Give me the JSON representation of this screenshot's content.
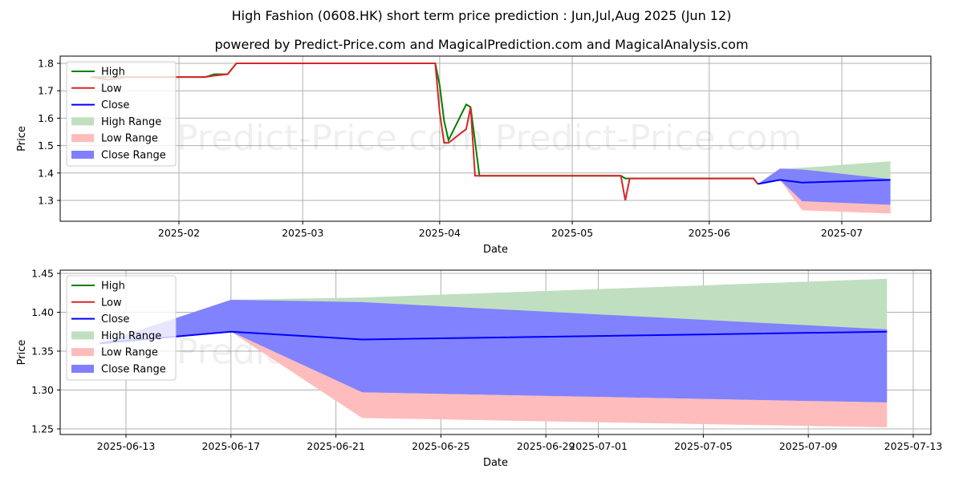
{
  "title": "High Fashion (0608.HK) short term price prediction : Jun,Jul,Aug 2025 (Jun 12)",
  "subtitle": "powered by Predict-Price.com and MagicalPrediction.com and MagicalAnalysis.com",
  "watermark": "Predict-Price.com",
  "colors": {
    "high": "#008000",
    "low": "#d62728",
    "close": "#0000ff",
    "high_range": "#c0dfc0",
    "low_range": "#ffbcbc",
    "close_range": "#7f7fff"
  },
  "legend": [
    "High",
    "Low",
    "Close",
    "High Range",
    "Low Range",
    "Close Range"
  ],
  "chart_data": [
    {
      "type": "line",
      "title": "High Fashion (0608.HK) short term price prediction : Jun,Jul,Aug 2025 (Jun 12)",
      "xlabel": "Date",
      "ylabel": "Price",
      "ylim": [
        1.22,
        1.83
      ],
      "yticks": [
        "1.3",
        "1.4",
        "1.5",
        "1.6",
        "1.7",
        "1.8"
      ],
      "xticks": [
        "2025-02",
        "2025-03",
        "2025-04",
        "2025-05",
        "2025-06",
        "2025-07"
      ],
      "grid": true,
      "legend_position": "upper left",
      "series": [
        {
          "name": "High",
          "x": [
            "2025-01-12",
            "2025-01-16",
            "2025-01-20",
            "2025-02-07",
            "2025-02-09",
            "2025-02-12",
            "2025-02-14",
            "2025-03-31",
            "2025-04-01",
            "2025-04-02",
            "2025-04-03",
            "2025-04-07",
            "2025-04-08",
            "2025-04-10",
            "2025-05-12",
            "2025-05-13",
            "2025-05-14",
            "2025-06-10",
            "2025-06-11",
            "2025-06-12"
          ],
          "values": [
            1.75,
            1.75,
            1.75,
            1.75,
            1.76,
            1.76,
            1.8,
            1.8,
            1.72,
            1.59,
            1.52,
            1.65,
            1.64,
            1.39,
            1.39,
            1.38,
            1.38,
            1.38,
            1.38,
            1.36
          ]
        },
        {
          "name": "Low",
          "x": [
            "2025-01-12",
            "2025-01-16",
            "2025-01-20",
            "2025-02-07",
            "2025-02-09",
            "2025-02-12",
            "2025-02-14",
            "2025-03-31",
            "2025-04-01",
            "2025-04-02",
            "2025-04-03",
            "2025-04-07",
            "2025-04-08",
            "2025-04-09",
            "2025-05-12",
            "2025-05-13",
            "2025-05-14",
            "2025-06-10",
            "2025-06-11",
            "2025-06-12"
          ],
          "values": [
            1.75,
            1.74,
            1.75,
            1.75,
            1.755,
            1.76,
            1.8,
            1.8,
            1.62,
            1.51,
            1.51,
            1.56,
            1.64,
            1.39,
            1.39,
            1.3,
            1.38,
            1.38,
            1.38,
            1.36
          ]
        },
        {
          "name": "Close",
          "x": [
            "2025-06-12",
            "2025-06-17",
            "2025-06-22",
            "2025-07-12"
          ],
          "values": [
            1.36,
            1.375,
            1.365,
            1.375
          ]
        },
        {
          "name": "High Range",
          "x": [
            "2025-06-12",
            "2025-06-17",
            "2025-06-22",
            "2025-07-12"
          ],
          "upper": [
            1.36,
            1.416,
            1.419,
            1.443
          ],
          "lower": [
            1.36,
            1.375,
            1.365,
            1.378
          ]
        },
        {
          "name": "Low Range",
          "x": [
            "2025-06-12",
            "2025-06-17",
            "2025-06-22",
            "2025-07-12"
          ],
          "upper": [
            1.36,
            1.375,
            1.297,
            1.284
          ],
          "lower": [
            1.36,
            1.375,
            1.264,
            1.252
          ]
        },
        {
          "name": "Close Range",
          "x": [
            "2025-06-12",
            "2025-06-17",
            "2025-06-22",
            "2025-07-12"
          ],
          "upper": [
            1.36,
            1.416,
            1.413,
            1.378
          ],
          "lower": [
            1.36,
            1.375,
            1.297,
            1.284
          ]
        }
      ]
    },
    {
      "type": "line",
      "xlabel": "Date",
      "ylabel": "Price",
      "ylim": [
        1.243,
        1.453
      ],
      "yticks": [
        "1.25",
        "1.30",
        "1.35",
        "1.40",
        "1.45"
      ],
      "xticks": [
        "2025-06-13",
        "2025-06-17",
        "2025-06-21",
        "2025-06-25",
        "2025-06-29",
        "2025-07-01",
        "2025-07-05",
        "2025-07-09",
        "2025-07-13"
      ],
      "grid": true,
      "legend_position": "upper left",
      "series": [
        {
          "name": "Close",
          "x": [
            "2025-06-12",
            "2025-06-17",
            "2025-06-22",
            "2025-07-12"
          ],
          "values": [
            1.36,
            1.375,
            1.365,
            1.375
          ]
        },
        {
          "name": "High Range",
          "x": [
            "2025-06-12",
            "2025-06-17",
            "2025-06-22",
            "2025-07-12"
          ],
          "upper": [
            1.36,
            1.416,
            1.419,
            1.443
          ],
          "lower": [
            1.36,
            1.375,
            1.365,
            1.378
          ]
        },
        {
          "name": "Low Range",
          "x": [
            "2025-06-12",
            "2025-06-17",
            "2025-06-22",
            "2025-07-12"
          ],
          "upper": [
            1.36,
            1.375,
            1.297,
            1.284
          ],
          "lower": [
            1.36,
            1.375,
            1.264,
            1.252
          ]
        },
        {
          "name": "Close Range",
          "x": [
            "2025-06-12",
            "2025-06-17",
            "2025-06-22",
            "2025-07-12"
          ],
          "upper": [
            1.36,
            1.416,
            1.413,
            1.378
          ],
          "lower": [
            1.36,
            1.375,
            1.297,
            1.284
          ]
        }
      ]
    }
  ]
}
